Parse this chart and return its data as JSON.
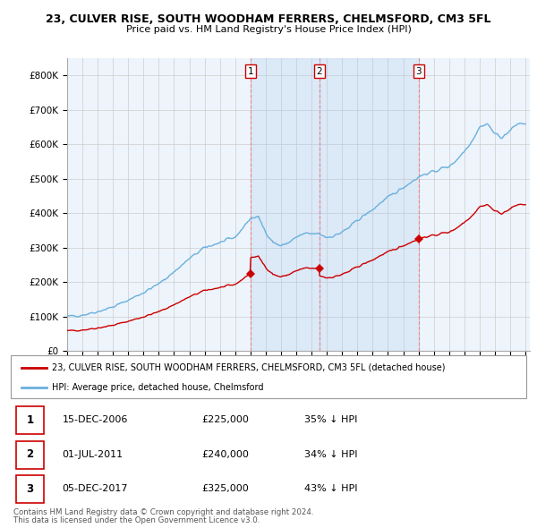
{
  "title1": "23, CULVER RISE, SOUTH WOODHAM FERRERS, CHELMSFORD, CM3 5FL",
  "title2": "Price paid vs. HM Land Registry's House Price Index (HPI)",
  "ylim": [
    0,
    850000
  ],
  "yticks": [
    0,
    100000,
    200000,
    300000,
    400000,
    500000,
    600000,
    700000,
    800000
  ],
  "ytick_labels": [
    "£0",
    "£100K",
    "£200K",
    "£300K",
    "£400K",
    "£500K",
    "£600K",
    "£700K",
    "£800K"
  ],
  "hpi_color": "#6ab0de",
  "price_color": "#cc0000",
  "vline_color": "#ee8888",
  "bg_shade_color": "#ddeeff",
  "sale_dates_decimal": [
    2007.0,
    2011.5,
    2018.0
  ],
  "sale_prices": [
    225000,
    240000,
    325000
  ],
  "sale_labels": [
    "1",
    "2",
    "3"
  ],
  "table_rows": [
    {
      "num": "1",
      "date": "15-DEC-2006",
      "price": "£225,000",
      "pct": "35% ↓ HPI"
    },
    {
      "num": "2",
      "date": "01-JUL-2011",
      "price": "£240,000",
      "pct": "34% ↓ HPI"
    },
    {
      "num": "3",
      "date": "05-DEC-2017",
      "price": "£325,000",
      "pct": "43% ↓ HPI"
    }
  ],
  "legend_red": "23, CULVER RISE, SOUTH WOODHAM FERRERS, CHELMSFORD, CM3 5FL (detached house)",
  "legend_blue": "HPI: Average price, detached house, Chelmsford",
  "footnote1": "Contains HM Land Registry data © Crown copyright and database right 2024.",
  "footnote2": "This data is licensed under the Open Government Licence v3.0."
}
